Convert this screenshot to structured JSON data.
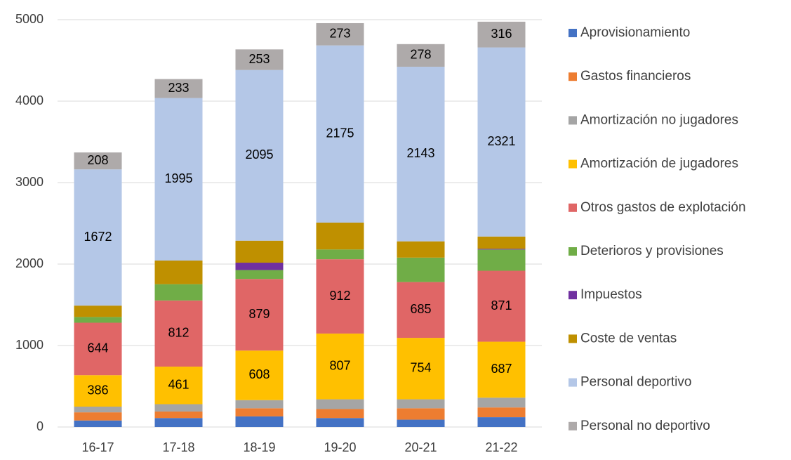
{
  "chart_data": {
    "type": "stacked_bar",
    "categories": [
      "16-17",
      "17-18",
      "18-19",
      "19-20",
      "20-21",
      "21-22"
    ],
    "series": [
      {
        "name": "Aprovisionamiento",
        "color": "#4472c4",
        "values": [
          80,
          110,
          130,
          110,
          90,
          120
        ]
      },
      {
        "name": "Gastos financieros",
        "color": "#ed7d31",
        "values": [
          100,
          80,
          100,
          110,
          140,
          120
        ]
      },
      {
        "name": "Amortización no jugadores",
        "color": "#a5a5a5",
        "values": [
          70,
          90,
          100,
          120,
          110,
          120
        ]
      },
      {
        "name": "Amortización de jugadores",
        "color": "#ffc000",
        "values": [
          386,
          461,
          608,
          807,
          754,
          687
        ],
        "show_labels": true
      },
      {
        "name": "Otros gastos de explotación",
        "color": "#e06666",
        "values": [
          644,
          812,
          879,
          912,
          685,
          871
        ],
        "show_labels": true
      },
      {
        "name": "Deterioros y provisiones",
        "color": "#70ad47",
        "values": [
          70,
          200,
          110,
          120,
          300,
          260
        ]
      },
      {
        "name": "Impuestos",
        "color": "#7030a0",
        "values": [
          0,
          0,
          90,
          0,
          0,
          10
        ]
      },
      {
        "name": "Coste de ventas",
        "color": "#bf9000",
        "values": [
          140,
          290,
          270,
          330,
          200,
          150
        ]
      },
      {
        "name": "Personal deportivo",
        "color": "#b4c7e7",
        "values": [
          1672,
          1995,
          2095,
          2175,
          2143,
          2321
        ],
        "show_labels": true
      },
      {
        "name": "Personal no deportivo",
        "color": "#aeaaaa",
        "values": [
          208,
          233,
          253,
          273,
          278,
          316
        ],
        "show_labels": true
      }
    ],
    "ylim": [
      0,
      5000
    ],
    "yticks": [
      0,
      1000,
      2000,
      3000,
      4000,
      5000
    ],
    "grid": true,
    "legend": "right"
  }
}
